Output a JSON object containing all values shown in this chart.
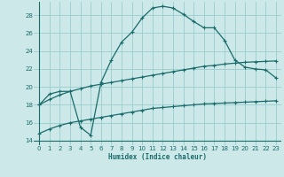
{
  "xlabel": "Humidex (Indice chaleur)",
  "xlim": [
    -0.5,
    23.5
  ],
  "ylim": [
    13.5,
    29.5
  ],
  "xticks": [
    0,
    1,
    2,
    3,
    4,
    5,
    6,
    7,
    8,
    9,
    10,
    11,
    12,
    13,
    14,
    15,
    16,
    17,
    18,
    19,
    20,
    21,
    22,
    23
  ],
  "yticks": [
    14,
    16,
    18,
    20,
    22,
    24,
    26,
    28
  ],
  "bg_color": "#cce8e8",
  "grid_color": "#99cccc",
  "line_color": "#1a6b6b",
  "line1_x": [
    0,
    1,
    2,
    3,
    4,
    5,
    6,
    7,
    8,
    9,
    10,
    11,
    12,
    13,
    14,
    15,
    16,
    17,
    18,
    19,
    20,
    21,
    22,
    23
  ],
  "line1_y": [
    18.0,
    19.2,
    19.5,
    19.5,
    15.5,
    14.6,
    20.5,
    23.0,
    25.0,
    26.1,
    27.7,
    28.8,
    29.0,
    28.8,
    28.1,
    27.3,
    26.6,
    26.6,
    25.2,
    23.0,
    22.2,
    22.0,
    21.9,
    21.0
  ],
  "line2_x": [
    0,
    1,
    2,
    3,
    4,
    5,
    6,
    7,
    8,
    9,
    10,
    11,
    12,
    13,
    14,
    15,
    16,
    17,
    18,
    19,
    20,
    21,
    22,
    23
  ],
  "line2_y": [
    18.0,
    18.6,
    19.1,
    19.5,
    19.8,
    20.1,
    20.3,
    20.5,
    20.7,
    20.9,
    21.1,
    21.3,
    21.5,
    21.7,
    21.9,
    22.1,
    22.3,
    22.4,
    22.55,
    22.65,
    22.75,
    22.8,
    22.85,
    22.9
  ],
  "line3_x": [
    0,
    1,
    2,
    3,
    4,
    5,
    6,
    7,
    8,
    9,
    10,
    11,
    12,
    13,
    14,
    15,
    16,
    17,
    18,
    19,
    20,
    21,
    22,
    23
  ],
  "line3_y": [
    14.8,
    15.3,
    15.7,
    16.0,
    16.2,
    16.4,
    16.6,
    16.8,
    17.0,
    17.2,
    17.4,
    17.6,
    17.7,
    17.8,
    17.9,
    18.0,
    18.1,
    18.15,
    18.2,
    18.25,
    18.3,
    18.35,
    18.4,
    18.45
  ]
}
